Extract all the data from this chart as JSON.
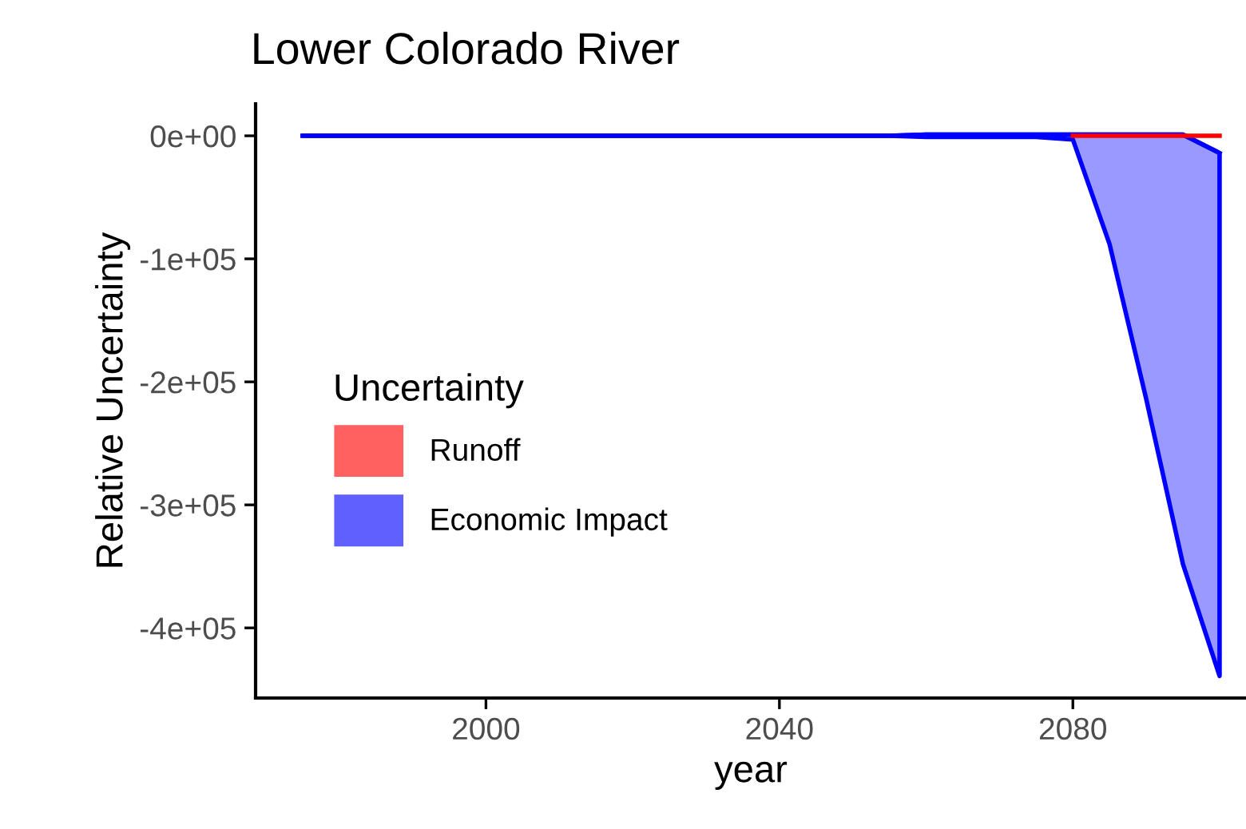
{
  "chart_data": {
    "type": "line",
    "title": "Lower Colorado River",
    "xlabel": "year",
    "ylabel": "Relative Uncertainty",
    "legend_title": "Uncertainty",
    "legend": "left",
    "x": [
      1975,
      1980,
      1985,
      1990,
      1995,
      2000,
      2005,
      2010,
      2015,
      2020,
      2025,
      2030,
      2035,
      2040,
      2045,
      2050,
      2055,
      2060,
      2065,
      2070,
      2075,
      2080,
      2085,
      2090,
      2095,
      2100
    ],
    "series": [
      {
        "name": "Runoff",
        "color": "#ff0000",
        "values": [
          null,
          null,
          null,
          null,
          null,
          null,
          null,
          null,
          null,
          null,
          null,
          null,
          null,
          null,
          null,
          null,
          null,
          null,
          null,
          null,
          null,
          0,
          0,
          0,
          0,
          0
        ]
      },
      {
        "name": "Economic Impact",
        "color": "#0000ff",
        "values": [
          0,
          0,
          0,
          0,
          0,
          0,
          0,
          0,
          0,
          0,
          0,
          0,
          0,
          0,
          0,
          0,
          0,
          1000,
          1000,
          1000,
          1000,
          1000,
          1000,
          1000,
          1000,
          -14000
        ],
        "lower": [
          0,
          0,
          0,
          0,
          0,
          0,
          0,
          0,
          0,
          0,
          0,
          0,
          0,
          0,
          0,
          0,
          0,
          -1000,
          -1000,
          -1000,
          -1000,
          -3000,
          -88000,
          -214000,
          -348000,
          -439000
        ],
        "upper": [
          0,
          0,
          0,
          0,
          0,
          0,
          0,
          0,
          0,
          0,
          0,
          0,
          0,
          0,
          0,
          0,
          0,
          1000,
          1000,
          1000,
          1000,
          1000,
          1000,
          1000,
          1000,
          -14000
        ]
      }
    ],
    "xlim": [
      1968.6,
      2103.6
    ],
    "xticks": [
      2000,
      2040,
      2080
    ],
    "ylim": [
      -457000,
      26000
    ],
    "yticks": [
      {
        "value": 0,
        "label": "0e+00"
      },
      {
        "value": -100000,
        "label": "-1e+05"
      },
      {
        "value": -200000,
        "label": "-2e+05"
      },
      {
        "value": -300000,
        "label": "-3e+05"
      },
      {
        "value": -400000,
        "label": "-4e+05"
      }
    ],
    "grid": false
  }
}
